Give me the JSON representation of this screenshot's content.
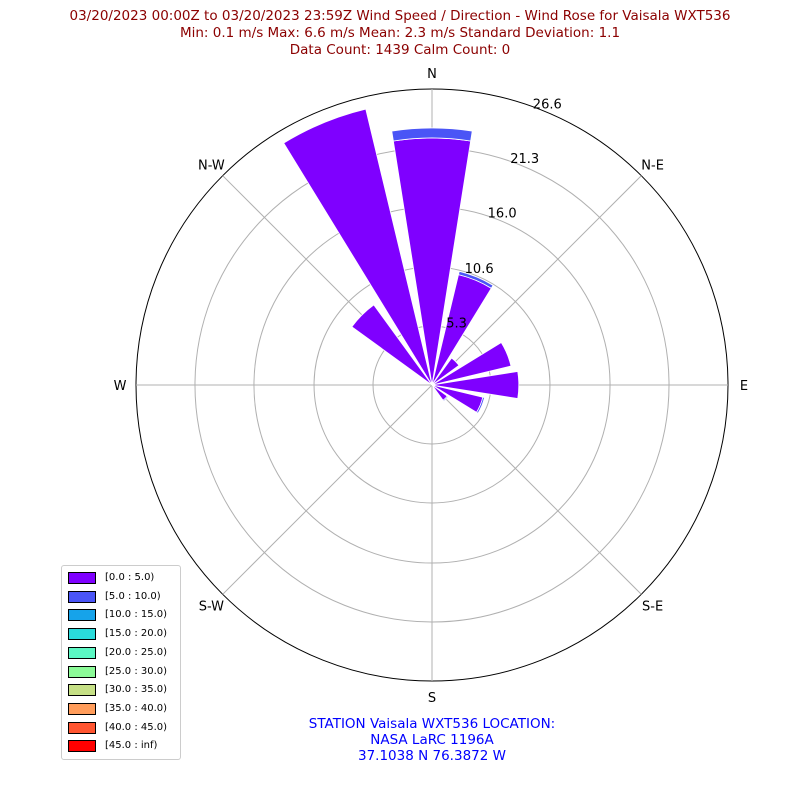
{
  "title": {
    "line1": "03/20/2023 00:00Z to 03/20/2023 23:59Z Wind Speed / Direction - Wind Rose for Vaisala WXT536",
    "line2": "Min: 0.1 m/s   Max: 6.6 m/s   Mean: 2.3 m/s  Standard Deviation: 1.1",
    "line3": "Data Count: 1439  Calm Count:  0"
  },
  "station": {
    "line1": "STATION Vaisala WXT536 LOCATION:",
    "line2": "NASA LaRC 1196A",
    "line3": "37.1038 N 76.3872 W"
  },
  "colors": {
    "title": "#8b0000",
    "station": "#0000ff",
    "grid": "#b0b0b0"
  },
  "chart_data": {
    "type": "bar",
    "subtype": "polar-wind-rose",
    "directions": [
      "N",
      "NNE",
      "NE",
      "ENE",
      "E",
      "ESE",
      "SE",
      "SSE",
      "S",
      "SSW",
      "SW",
      "WSW",
      "W",
      "WNW",
      "NW",
      "NNW"
    ],
    "compass_labels": [
      "N",
      "N-E",
      "E",
      "S-E",
      "S",
      "S-W",
      "W",
      "N-W"
    ],
    "radial_ticks": [
      "5.3",
      "10.6",
      "16.0",
      "21.3",
      "26.6"
    ],
    "radial_tick_values": [
      5.3,
      10.6,
      16.0,
      21.3,
      26.6
    ],
    "rmax": 26.6,
    "series": [
      {
        "name": "[0.0 : 5.0)",
        "color": "#7f00ff",
        "values": [
          22.2,
          10.2,
          3.0,
          7.3,
          7.8,
          4.7,
          1.7,
          0,
          0,
          0,
          0,
          0,
          0,
          0,
          8.9,
          25.5
        ]
      },
      {
        "name": "[5.0 : 10.0)",
        "color": "#4a55f6",
        "values": [
          0.9,
          0.3,
          0,
          0,
          0,
          0.15,
          0.1,
          0,
          0,
          0,
          0,
          0,
          0,
          0,
          0,
          0
        ]
      },
      {
        "name": "[10.0 : 15.0)",
        "color": "#16a3ea",
        "values": [
          0,
          0,
          0,
          0,
          0,
          0,
          0,
          0,
          0,
          0,
          0,
          0,
          0,
          0,
          0,
          0
        ]
      },
      {
        "name": "[15.0 : 20.0)",
        "color": "#2adbdb",
        "values": [
          0,
          0,
          0,
          0,
          0,
          0,
          0,
          0,
          0,
          0,
          0,
          0,
          0,
          0,
          0,
          0
        ]
      },
      {
        "name": "[20.0 : 25.0)",
        "color": "#5cf8c4",
        "values": [
          0,
          0,
          0,
          0,
          0,
          0,
          0,
          0,
          0,
          0,
          0,
          0,
          0,
          0,
          0,
          0
        ]
      },
      {
        "name": "[25.0 : 30.0)",
        "color": "#8cfb98",
        "values": [
          0,
          0,
          0,
          0,
          0,
          0,
          0,
          0,
          0,
          0,
          0,
          0,
          0,
          0,
          0,
          0
        ]
      },
      {
        "name": "[30.0 : 35.0)",
        "color": "#c6e086",
        "values": [
          0,
          0,
          0,
          0,
          0,
          0,
          0,
          0,
          0,
          0,
          0,
          0,
          0,
          0,
          0,
          0
        ]
      },
      {
        "name": "[35.0 : 40.0)",
        "color": "#ff9c5a",
        "values": [
          0,
          0,
          0,
          0,
          0,
          0,
          0,
          0,
          0,
          0,
          0,
          0,
          0,
          0,
          0,
          0
        ]
      },
      {
        "name": "[40.0 : 45.0)",
        "color": "#ff5530",
        "values": [
          0,
          0,
          0,
          0,
          0,
          0,
          0,
          0,
          0,
          0,
          0,
          0,
          0,
          0,
          0,
          0
        ]
      },
      {
        "name": "[45.0 : inf)",
        "color": "#ff0000",
        "values": [
          0,
          0,
          0,
          0,
          0,
          0,
          0,
          0,
          0,
          0,
          0,
          0,
          0,
          0,
          0,
          0
        ]
      }
    ],
    "legend_position": "lower-left",
    "grid": true
  }
}
